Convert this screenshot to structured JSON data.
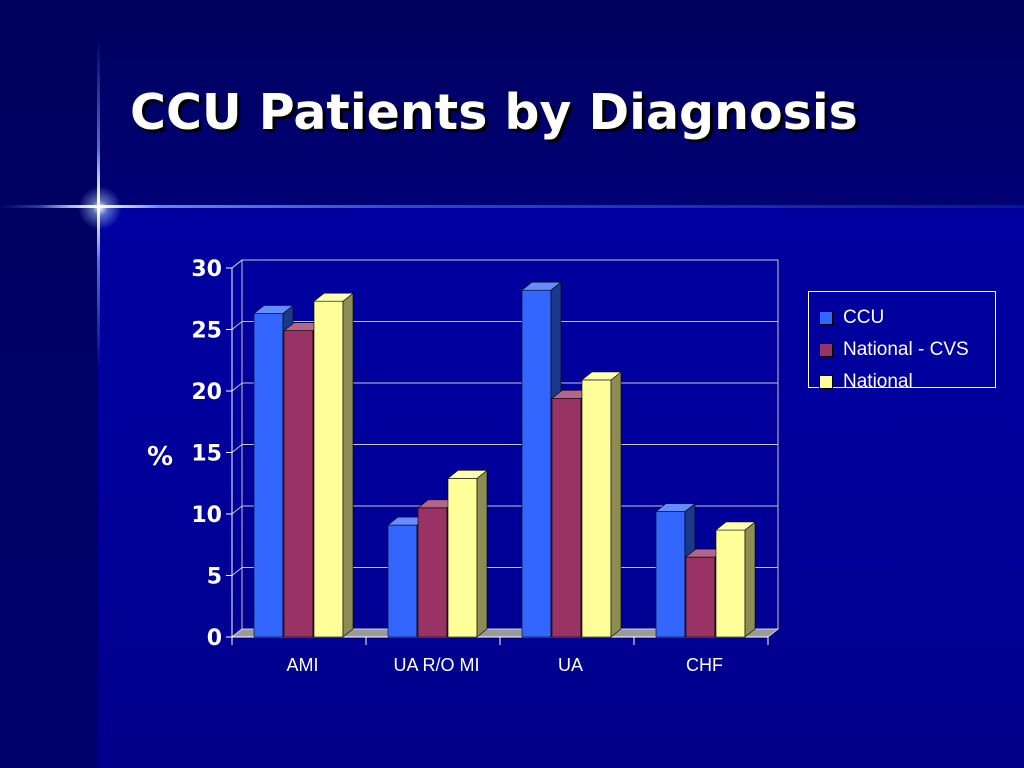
{
  "slide": {
    "title": "CCU Patients by Diagnosis"
  },
  "chart_data": {
    "type": "bar",
    "style": "3d-clustered",
    "title": "",
    "xlabel": "",
    "ylabel": "%",
    "ylim": [
      0,
      30
    ],
    "yticks": [
      0,
      5,
      10,
      15,
      20,
      25,
      30
    ],
    "grid": true,
    "legend_position": "right",
    "categories": [
      "AMI",
      "UA R/O MI",
      "UA",
      "CHF"
    ],
    "series": [
      {
        "name": "CCU",
        "color": "#3366ff",
        "values": [
          26.3,
          9.1,
          28.2,
          10.2
        ]
      },
      {
        "name": "National - CVS",
        "color": "#993366",
        "values": [
          24.9,
          10.5,
          19.4,
          6.5
        ]
      },
      {
        "name": "National",
        "color": "#ffff99",
        "values": [
          27.3,
          12.9,
          20.9,
          8.7
        ]
      }
    ]
  }
}
